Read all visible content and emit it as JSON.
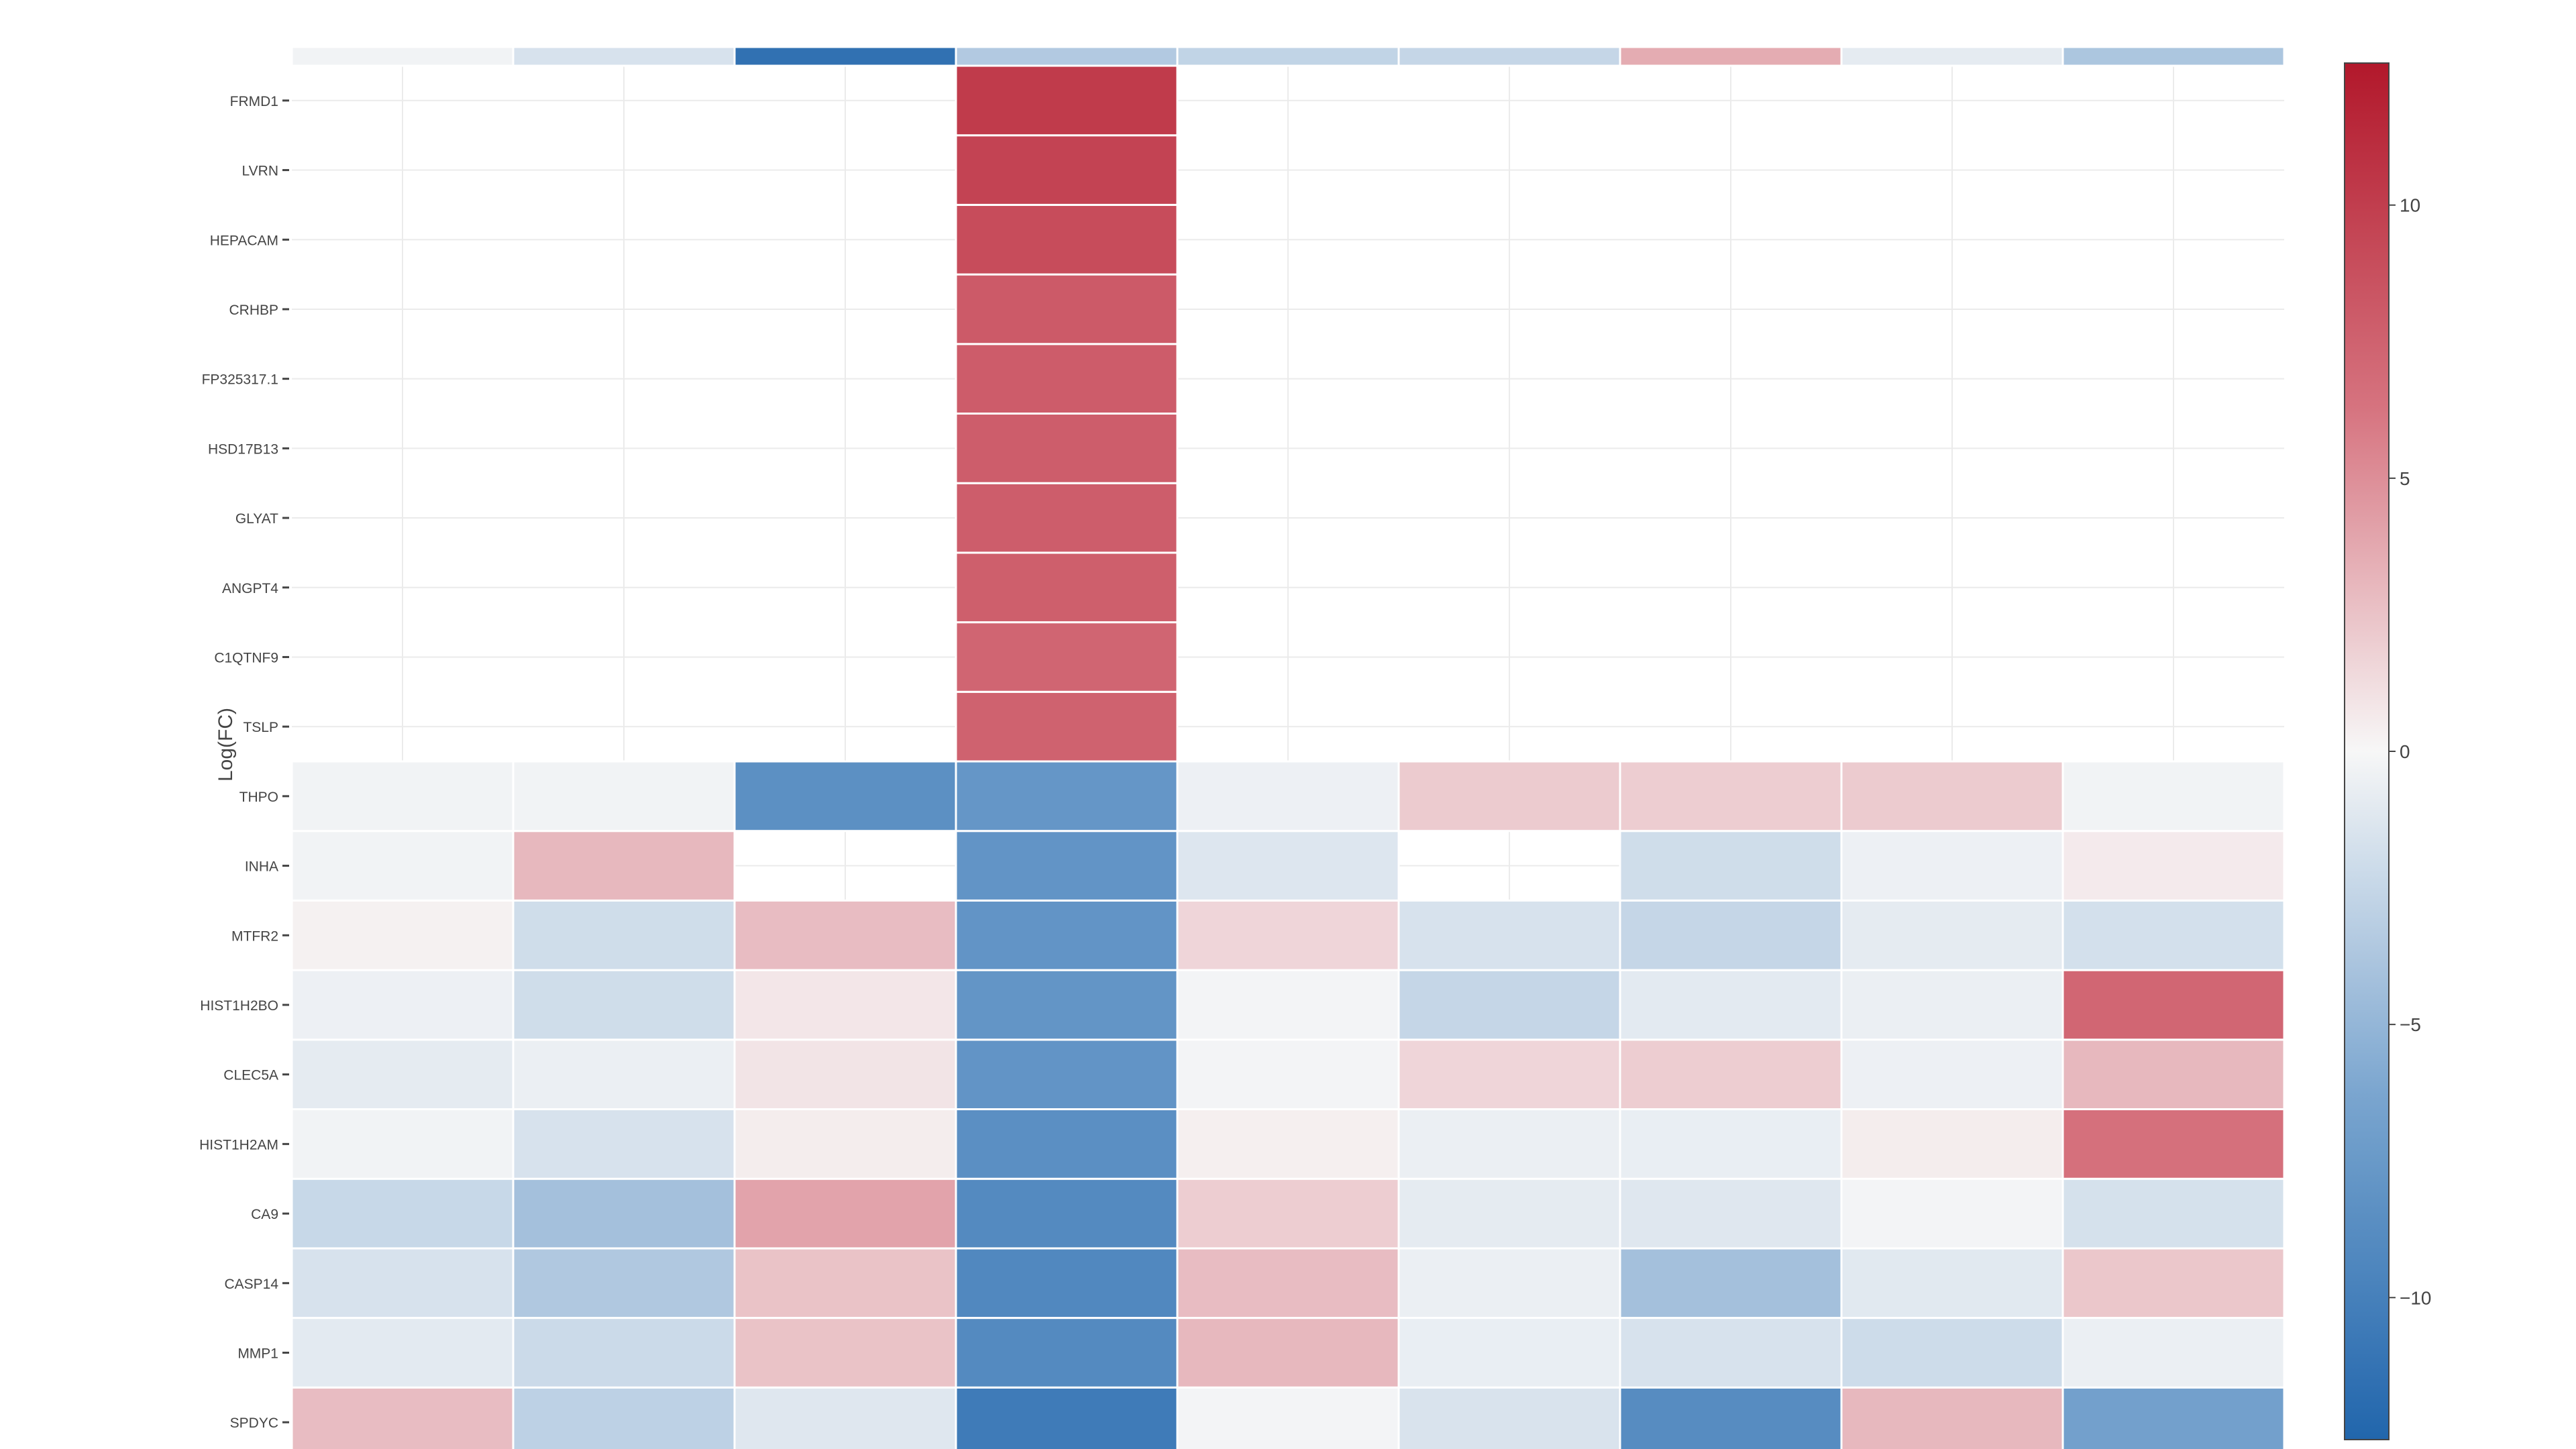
{
  "chart_data": {
    "type": "heatmap",
    "title": "",
    "xlabel": "",
    "ylabel": "Log(FC)",
    "x_categories": [
      "",
      "",
      "",
      "",
      "",
      "",
      "",
      "",
      ""
    ],
    "genes": [
      "SPDYC",
      "MMP1",
      "CASP14",
      "CA9",
      "HIST1H2AM",
      "CLEC5A",
      "HIST1H2BO",
      "MTFR2",
      "INHA",
      "THPO",
      "TSLP",
      "C1QTNF9",
      "ANGPT4",
      "GLYAT",
      "HSD17B13",
      "FP325317.1",
      "CRHBP",
      "HEPACAM",
      "LVRN",
      "FRMD1"
    ],
    "top_strip_values": [
      -0.3,
      -1.6,
      -11.5,
      -3.5,
      -2.7,
      -2.5,
      3.6,
      -0.9,
      -3.8
    ],
    "values": [
      [
        2.8,
        -2.9,
        -1.2,
        -10.5,
        -0.2,
        -1.5,
        -8.8,
        3.0,
        -6.8
      ],
      [
        -1.0,
        -2.2,
        2.5,
        -9.0,
        3.0,
        -0.7,
        -1.6,
        -2.1,
        -0.6
      ],
      [
        -1.6,
        -3.6,
        2.5,
        -9.2,
        2.8,
        -0.6,
        -4.2,
        -1.1,
        2.3
      ],
      [
        -2.4,
        -4.2,
        4.0,
        -9.0,
        2.0,
        -0.9,
        -1.2,
        -0.2,
        -1.7
      ],
      [
        -0.3,
        -1.6,
        0.5,
        -8.5,
        0.4,
        -0.6,
        -0.7,
        0.5,
        6.5
      ],
      [
        -0.9,
        -0.6,
        0.9,
        -8.0,
        -0.2,
        1.6,
        2.0,
        -0.5,
        3.0
      ],
      [
        -0.5,
        -2.0,
        0.8,
        -7.9,
        -0.2,
        -2.5,
        -1.0,
        -0.6,
        7.2
      ],
      [
        0.3,
        -2.0,
        2.8,
        -8.0,
        1.6,
        -1.6,
        -2.5,
        -0.9,
        -1.8
      ],
      [
        -0.3,
        3.0,
        null,
        -8.0,
        -1.3,
        null,
        -2.0,
        -0.5,
        0.6
      ],
      [
        -0.3,
        -0.3,
        -8.4,
        -7.8,
        -0.5,
        2.1,
        2.0,
        2.1,
        -0.3
      ],
      [
        null,
        null,
        null,
        7.5,
        null,
        null,
        null,
        null,
        null
      ],
      [
        null,
        null,
        null,
        7.3,
        null,
        null,
        null,
        null,
        null
      ],
      [
        null,
        null,
        null,
        7.7,
        null,
        null,
        null,
        null,
        null
      ],
      [
        null,
        null,
        null,
        7.8,
        null,
        null,
        null,
        null,
        null
      ],
      [
        null,
        null,
        null,
        7.8,
        null,
        null,
        null,
        null,
        null
      ],
      [
        null,
        null,
        null,
        7.9,
        null,
        null,
        null,
        null,
        null
      ],
      [
        null,
        null,
        null,
        8.0,
        null,
        null,
        null,
        null,
        null
      ],
      [
        null,
        null,
        null,
        9.0,
        null,
        null,
        null,
        null,
        null
      ],
      [
        null,
        null,
        null,
        9.6,
        null,
        null,
        null,
        null,
        null
      ],
      [
        null,
        null,
        null,
        10.2,
        null,
        null,
        null,
        null,
        null
      ]
    ],
    "colorscale": {
      "min": -12.6,
      "max": 12.6,
      "stops": [
        [
          "-12.6",
          "#2166ac"
        ],
        [
          "-6.3",
          "#7aa5cf"
        ],
        [
          "0",
          "#f7f7f7"
        ],
        [
          "6.3",
          "#d6737f"
        ],
        [
          "12.6",
          "#b2182b"
        ]
      ],
      "ticks": [
        10,
        5,
        0,
        -5,
        -10
      ],
      "tick_labels": [
        "10",
        "5",
        "0",
        "−5",
        "−10"
      ]
    },
    "grid": true,
    "legend": "colorbar-right",
    "colors": {
      "background": "#ffffff",
      "gridline": "#ebebeb",
      "axis_text": "#444444",
      "tick_mark": "#444444",
      "cell_border": "#ffffff",
      "colorbar_border": "#444444"
    }
  }
}
